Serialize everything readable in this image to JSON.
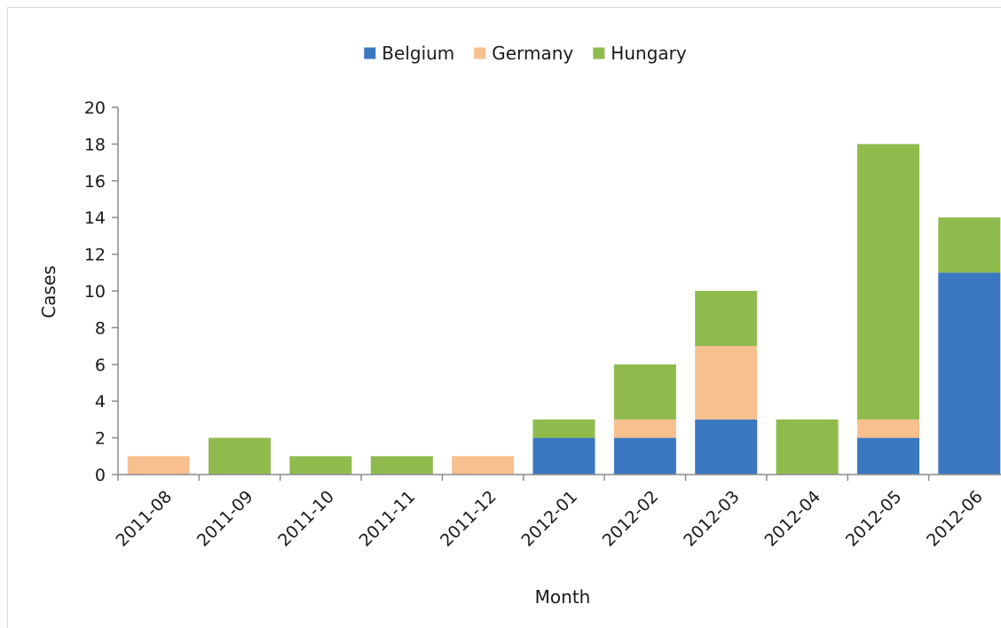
{
  "chart_data": {
    "type": "bar",
    "stacked": true,
    "xlabel": "Month",
    "ylabel": "Cases",
    "ylim": [
      0,
      20
    ],
    "yticks": [
      0,
      2,
      4,
      6,
      8,
      10,
      12,
      14,
      16,
      18,
      20
    ],
    "grid": false,
    "legend_position": "top-center",
    "categories": [
      "2011-08",
      "2011-09",
      "2011-10",
      "2011-11",
      "2011-12",
      "2012-01",
      "2012-02",
      "2012-03",
      "2012-04",
      "2012-05",
      "2012-06"
    ],
    "series": [
      {
        "name": "Belgium",
        "color": "#3b78c1",
        "values": [
          0,
          0,
          0,
          0,
          0,
          2,
          2,
          3,
          0,
          2,
          11
        ]
      },
      {
        "name": "Germany",
        "color": "#f8c08e",
        "values": [
          1,
          0,
          0,
          0,
          1,
          0,
          1,
          4,
          0,
          1,
          0
        ]
      },
      {
        "name": "Hungary",
        "color": "#8fbb4d",
        "values": [
          0,
          2,
          1,
          1,
          0,
          1,
          3,
          3,
          3,
          15,
          3
        ]
      }
    ]
  }
}
